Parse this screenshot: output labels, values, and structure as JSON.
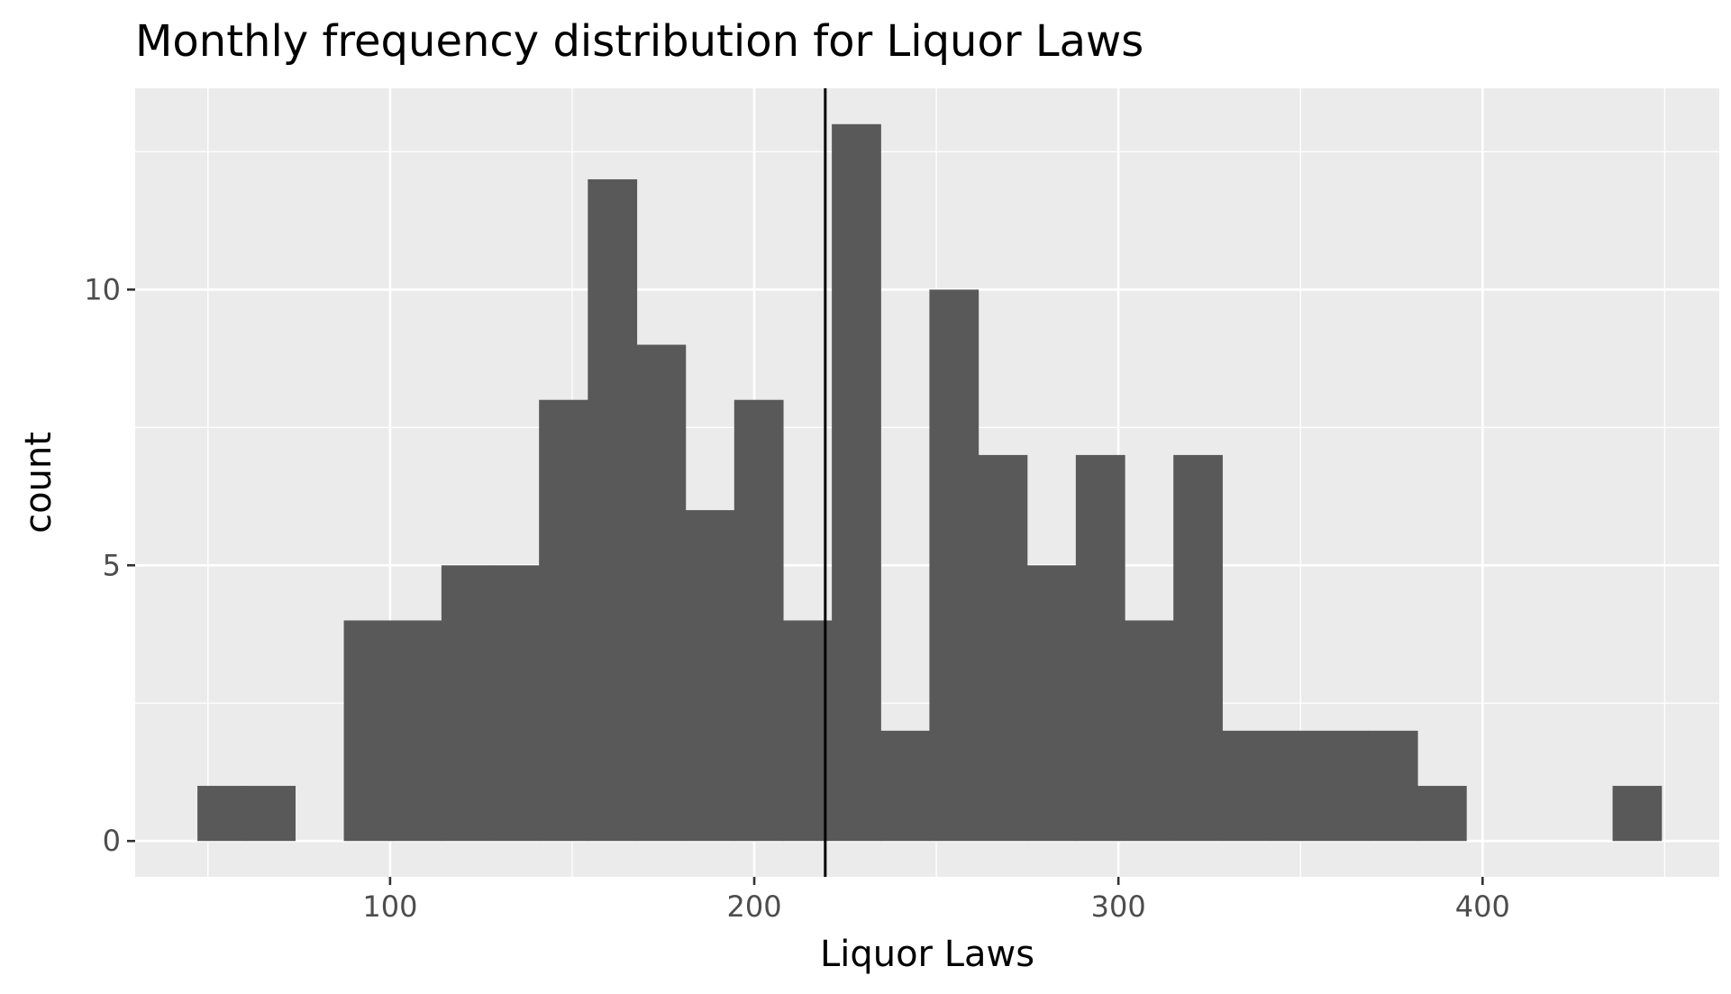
{
  "chart_data": {
    "type": "bar",
    "subtype": "histogram",
    "title": "Monthly frequency distribution for Liquor Laws",
    "xlabel": "Liquor Laws",
    "ylabel": "count",
    "xlim": [
      30,
      465
    ],
    "ylim": [
      -0.65,
      13.65
    ],
    "xticks": [
      100,
      200,
      300,
      400
    ],
    "xtick_labels": [
      "100",
      "200",
      "300",
      "400"
    ],
    "yticks": [
      0,
      5,
      10
    ],
    "ytick_labels": [
      "0",
      "5",
      "10"
    ],
    "x_minor_gridlines": [
      50,
      150,
      250,
      350,
      450
    ],
    "y_minor_gridlines": [
      2.5,
      7.5,
      12.5
    ],
    "bins": [
      {
        "x0": 47.1,
        "x1": 60.5,
        "count": 1
      },
      {
        "x0": 60.5,
        "x1": 73.9,
        "count": 1
      },
      {
        "x0": 73.9,
        "x1": 87.3,
        "count": 0
      },
      {
        "x0": 87.3,
        "x1": 100.7,
        "count": 4
      },
      {
        "x0": 100.7,
        "x1": 114.1,
        "count": 4
      },
      {
        "x0": 114.1,
        "x1": 127.5,
        "count": 5
      },
      {
        "x0": 127.5,
        "x1": 140.9,
        "count": 5
      },
      {
        "x0": 140.9,
        "x1": 154.3,
        "count": 8
      },
      {
        "x0": 154.3,
        "x1": 167.7,
        "count": 12
      },
      {
        "x0": 167.7,
        "x1": 181.1,
        "count": 9
      },
      {
        "x0": 181.1,
        "x1": 194.5,
        "count": 6
      },
      {
        "x0": 194.5,
        "x1": 207.9,
        "count": 8
      },
      {
        "x0": 207.9,
        "x1": 221.3,
        "count": 4
      },
      {
        "x0": 221.3,
        "x1": 234.7,
        "count": 13
      },
      {
        "x0": 234.7,
        "x1": 248.1,
        "count": 2
      },
      {
        "x0": 248.1,
        "x1": 261.5,
        "count": 10
      },
      {
        "x0": 261.5,
        "x1": 274.9,
        "count": 7
      },
      {
        "x0": 274.9,
        "x1": 288.3,
        "count": 5
      },
      {
        "x0": 288.3,
        "x1": 301.7,
        "count": 7
      },
      {
        "x0": 301.7,
        "x1": 315.1,
        "count": 4
      },
      {
        "x0": 315.1,
        "x1": 328.5,
        "count": 7
      },
      {
        "x0": 328.5,
        "x1": 341.9,
        "count": 2
      },
      {
        "x0": 341.9,
        "x1": 355.3,
        "count": 2
      },
      {
        "x0": 355.3,
        "x1": 368.7,
        "count": 2
      },
      {
        "x0": 368.7,
        "x1": 382.1,
        "count": 2
      },
      {
        "x0": 382.1,
        "x1": 395.5,
        "count": 1
      },
      {
        "x0": 395.5,
        "x1": 408.9,
        "count": 0
      },
      {
        "x0": 408.9,
        "x1": 422.3,
        "count": 0
      },
      {
        "x0": 422.3,
        "x1": 435.7,
        "count": 0
      },
      {
        "x0": 435.7,
        "x1": 449.1,
        "count": 1
      }
    ],
    "vline_x": 219.5,
    "grid": true,
    "legend": "none",
    "colors": {
      "panel": "#ebebeb",
      "grid": "#ffffff",
      "bar": "#595959",
      "vline": "#000000",
      "tick": "#333333",
      "tick_label": "#4d4d4d"
    }
  }
}
